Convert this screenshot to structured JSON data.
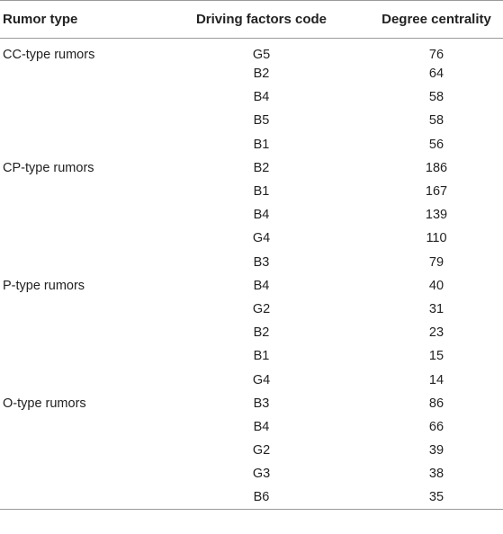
{
  "table": {
    "headers": [
      "Rumor type",
      "Driving factors code",
      "Degree centrality"
    ],
    "rows": [
      {
        "type": "CC-type rumors",
        "code": "G5",
        "value": "76"
      },
      {
        "type": "",
        "code": "B2",
        "value": "64"
      },
      {
        "type": "",
        "code": "B4",
        "value": "58"
      },
      {
        "type": "",
        "code": "B5",
        "value": "58"
      },
      {
        "type": "",
        "code": "B1",
        "value": "56"
      },
      {
        "type": "CP-type rumors",
        "code": "B2",
        "value": "186"
      },
      {
        "type": "",
        "code": "B1",
        "value": "167"
      },
      {
        "type": "",
        "code": "B4",
        "value": "139"
      },
      {
        "type": "",
        "code": "G4",
        "value": "110"
      },
      {
        "type": "",
        "code": "B3",
        "value": "79"
      },
      {
        "type": "P-type rumors",
        "code": "B4",
        "value": "40"
      },
      {
        "type": "",
        "code": "G2",
        "value": "31"
      },
      {
        "type": "",
        "code": "B2",
        "value": "23"
      },
      {
        "type": "",
        "code": "B1",
        "value": "15"
      },
      {
        "type": "",
        "code": "G4",
        "value": "14"
      },
      {
        "type": "O-type rumors",
        "code": "B3",
        "value": "86"
      },
      {
        "type": "",
        "code": "B4",
        "value": "66"
      },
      {
        "type": "",
        "code": "G2",
        "value": "39"
      },
      {
        "type": "",
        "code": "G3",
        "value": "38"
      },
      {
        "type": "",
        "code": "B6",
        "value": "35"
      }
    ]
  }
}
